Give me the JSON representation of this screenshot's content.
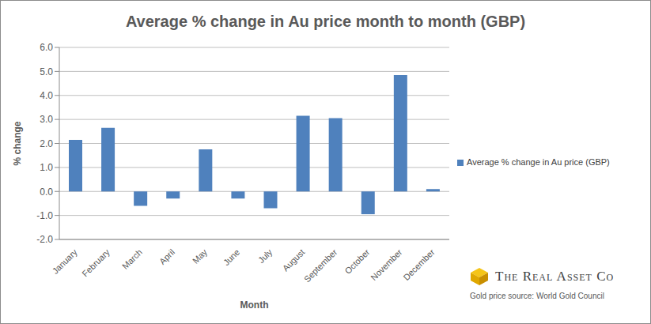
{
  "chart_data": {
    "type": "bar",
    "title": "Average % change in Au price month to month (GBP)",
    "x_label": "Month",
    "y_label": "% change",
    "categories": [
      "January",
      "February",
      "March",
      "April",
      "May",
      "June",
      "July",
      "August",
      "September",
      "October",
      "November",
      "December"
    ],
    "series": [
      {
        "name": "Average % change in Au price (GBP)",
        "color": "#4f81bd",
        "values": [
          2.15,
          2.65,
          -0.6,
          -0.3,
          1.75,
          -0.3,
          -0.7,
          3.15,
          3.05,
          -0.95,
          4.85,
          0.1
        ]
      }
    ],
    "ylim": [
      -2,
      6
    ],
    "yticks": [
      {
        "value": -2,
        "label": "-2.0"
      },
      {
        "value": -1,
        "label": "-1.0"
      },
      {
        "value": 0,
        "label": "0.0"
      },
      {
        "value": 1,
        "label": "1.0"
      },
      {
        "value": 2,
        "label": "2.0"
      },
      {
        "value": 3,
        "label": "3.0"
      },
      {
        "value": 4,
        "label": "4.0"
      },
      {
        "value": 5,
        "label": "5.0"
      },
      {
        "value": 6,
        "label": "6.0"
      }
    ],
    "grid": true,
    "legend": "right",
    "annotations": [
      "The Real Asset Co",
      "Gold price source: World Gold Council"
    ]
  }
}
